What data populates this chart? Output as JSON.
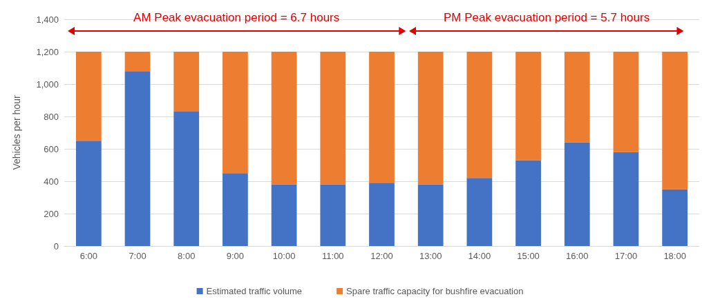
{
  "chart_data": {
    "type": "bar",
    "stacked": true,
    "ylabel": "Vehicles per hour",
    "categories": [
      "6:00",
      "7:00",
      "8:00",
      "9:00",
      "10:00",
      "11:00",
      "12:00",
      "13:00",
      "14:00",
      "15:00",
      "16:00",
      "17:00",
      "18:00"
    ],
    "series": [
      {
        "name": "Estimated traffic volume",
        "color": "#4472c4",
        "values": [
          650,
          1080,
          830,
          450,
          380,
          380,
          390,
          380,
          420,
          530,
          640,
          580,
          350
        ]
      },
      {
        "name": "Spare traffic capacity for bushfire evacuation",
        "color": "#ed7d31",
        "values": [
          550,
          120,
          370,
          750,
          820,
          820,
          810,
          820,
          780,
          670,
          560,
          620,
          850
        ]
      }
    ],
    "ylim": [
      0,
      1400
    ],
    "yticks": [
      0,
      200,
      400,
      600,
      800,
      {
        "value": 1000,
        "label": "1,000"
      },
      {
        "value": 1200,
        "label": "1,200"
      },
      {
        "value": 1400,
        "label": "1,400"
      }
    ],
    "grid": "y",
    "legend": "bottom",
    "annotations": [
      "AM Peak evacuation period = 6.7 hours",
      "PM Peak evacuation period = 5.7 hours"
    ]
  }
}
